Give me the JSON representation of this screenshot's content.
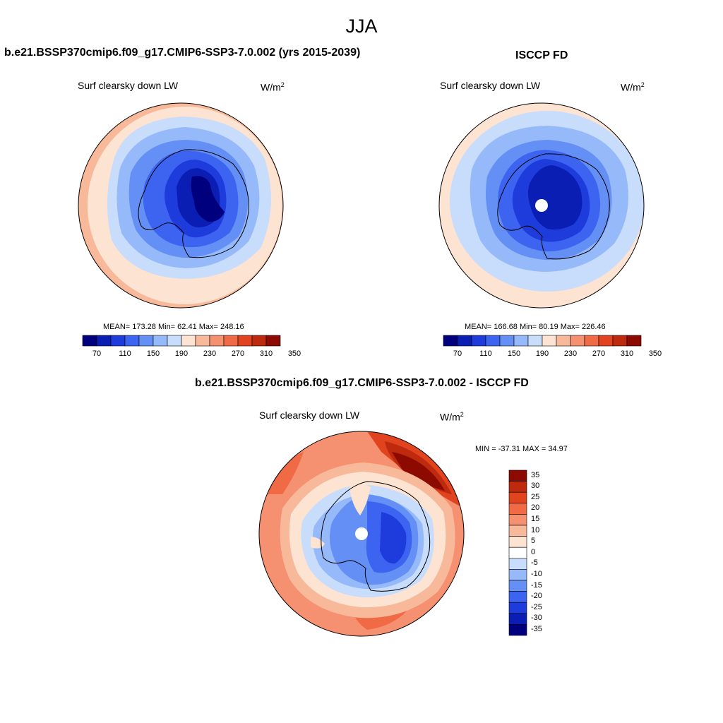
{
  "figure": {
    "title": "JJA",
    "variable": "Surf clearsky down LW",
    "units_base": "W/m",
    "units_exp": "2"
  },
  "panels": [
    {
      "id": "model",
      "title": "b.e21.BSSP370cmip6.f09_g17.CMIP6-SSP3-7.0.002 (yrs 2015-2039)",
      "stats": "MEAN= 173.28  Min=  62.41  Max= 248.16",
      "pole_missing": false
    },
    {
      "id": "obs",
      "title": "ISCCP FD",
      "stats": "MEAN= 166.68  Min=  80.19  Max= 226.46",
      "pole_missing": true
    },
    {
      "id": "diff",
      "title": "b.e21.BSSP370cmip6.f09_g17.CMIP6-SSP3-7.0.002 - ISCCP FD",
      "stats": "MIN = -37.31 MAX =  34.97",
      "pole_missing": true
    }
  ],
  "colorbars": {
    "abs_tick_labels": [
      "70",
      "110",
      "150",
      "190",
      "230",
      "270",
      "310",
      "350"
    ],
    "abs_colors": [
      "#00007f",
      "#0a1eb4",
      "#1e3cdc",
      "#3c64f0",
      "#6490f5",
      "#96b9fa",
      "#c8dcfc",
      "#fde3d2",
      "#f8b99a",
      "#f59070",
      "#f06a46",
      "#e0431e",
      "#bd2a0e",
      "#8c0a00"
    ],
    "diff_tick_labels": [
      "35",
      "30",
      "25",
      "20",
      "15",
      "10",
      "5",
      "0",
      "-5",
      "-10",
      "-15",
      "-20",
      "-25",
      "-30",
      "-35"
    ],
    "diff_colors": [
      "#8c0a00",
      "#bd2a0e",
      "#e0431e",
      "#f06a46",
      "#f59070",
      "#f8b99a",
      "#fde3d2",
      "#ffffff",
      "#c8dcfc",
      "#96b9fa",
      "#6490f5",
      "#3c64f0",
      "#1e3cdc",
      "#0a1eb4",
      "#00007f"
    ]
  },
  "chart_data": [
    {
      "type": "heatmap",
      "title": "b.e21.BSSP370cmip6.f09_g17.CMIP6-SSP3-7.0.002 (yrs 2015-2039)",
      "subtitle": "Surf clearsky down LW",
      "units": "W/m2",
      "mean": 173.28,
      "min": 62.41,
      "max": 248.16,
      "contour_levels": [
        70,
        90,
        110,
        130,
        150,
        170,
        190,
        210,
        230,
        250,
        270,
        290,
        310,
        330,
        350
      ]
    },
    {
      "type": "heatmap",
      "title": "ISCCP FD",
      "subtitle": "Surf clearsky down LW",
      "units": "W/m2",
      "mean": 166.68,
      "min": 80.19,
      "max": 226.46,
      "contour_levels": [
        70,
        90,
        110,
        130,
        150,
        170,
        190,
        210,
        230,
        250,
        270,
        290,
        310,
        330,
        350
      ]
    },
    {
      "type": "heatmap",
      "title": "b.e21.BSSP370cmip6.f09_g17.CMIP6-SSP3-7.0.002 - ISCCP FD",
      "subtitle": "Surf clearsky down LW",
      "units": "W/m2",
      "min": -37.31,
      "max": 34.97,
      "contour_levels": [
        -35,
        -30,
        -25,
        -20,
        -15,
        -10,
        -5,
        0,
        5,
        10,
        15,
        20,
        25,
        30,
        35
      ]
    }
  ]
}
